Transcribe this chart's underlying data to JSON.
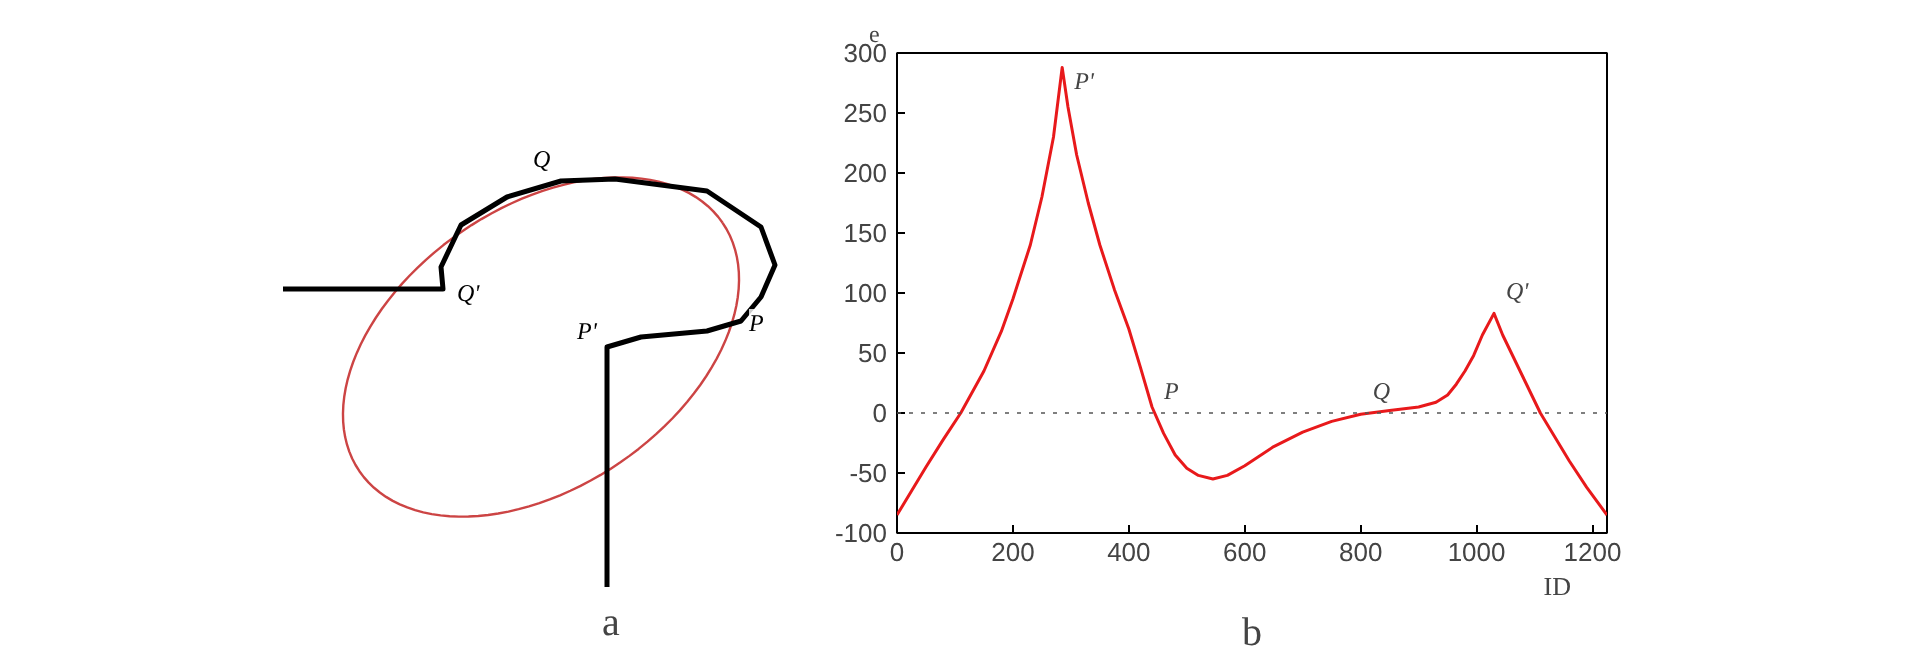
{
  "chart_data": [
    {
      "type": "other",
      "title": "a",
      "annotations": [
        "Q",
        "Q'",
        "P'",
        "P"
      ]
    },
    {
      "type": "line",
      "title": "b",
      "xlabel": "ID",
      "ylabel": "e",
      "grid": false,
      "marker": "none",
      "line_style": "solid",
      "xlim": [
        0,
        1225
      ],
      "ylim": [
        -100,
        300
      ],
      "xticks": [
        0,
        200,
        400,
        600,
        800,
        1000,
        1200
      ],
      "yticks": [
        -100,
        -50,
        0,
        50,
        100,
        150,
        200,
        250,
        300
      ],
      "ref_lines": [
        {
          "axis": "y",
          "value": 0,
          "label": null,
          "color": "#555555",
          "line_style": "dotted"
        }
      ],
      "annotations": [
        {
          "text": "P'",
          "x": 285,
          "y": 288
        },
        {
          "text": "P",
          "x": 440,
          "y": 0
        },
        {
          "text": "Q",
          "x": 800,
          "y": 0
        },
        {
          "text": "Q'",
          "x": 1030,
          "y": 83
        }
      ],
      "series": [
        {
          "color": "#e8191b",
          "x": [
            0,
            25,
            50,
            80,
            110,
            150,
            180,
            200,
            230,
            250,
            270,
            285,
            295,
            310,
            330,
            350,
            375,
            400,
            420,
            440,
            460,
            480,
            500,
            520,
            545,
            570,
            600,
            650,
            700,
            750,
            800,
            850,
            900,
            930,
            950,
            965,
            980,
            995,
            1010,
            1030,
            1045,
            1060,
            1085,
            1110,
            1135,
            1160,
            1190,
            1225
          ],
          "values": [
            -85,
            -65,
            -45,
            -22,
            0,
            35,
            68,
            95,
            140,
            180,
            230,
            288,
            255,
            215,
            175,
            140,
            103,
            70,
            38,
            5,
            -17,
            -35,
            -46,
            -52,
            -55,
            -52,
            -44,
            -28,
            -16,
            -7,
            -1,
            2,
            5,
            9,
            15,
            24,
            35,
            48,
            65,
            83,
            65,
            50,
            25,
            0,
            -20,
            -40,
            -62,
            -85
          ]
        }
      ]
    }
  ]
}
